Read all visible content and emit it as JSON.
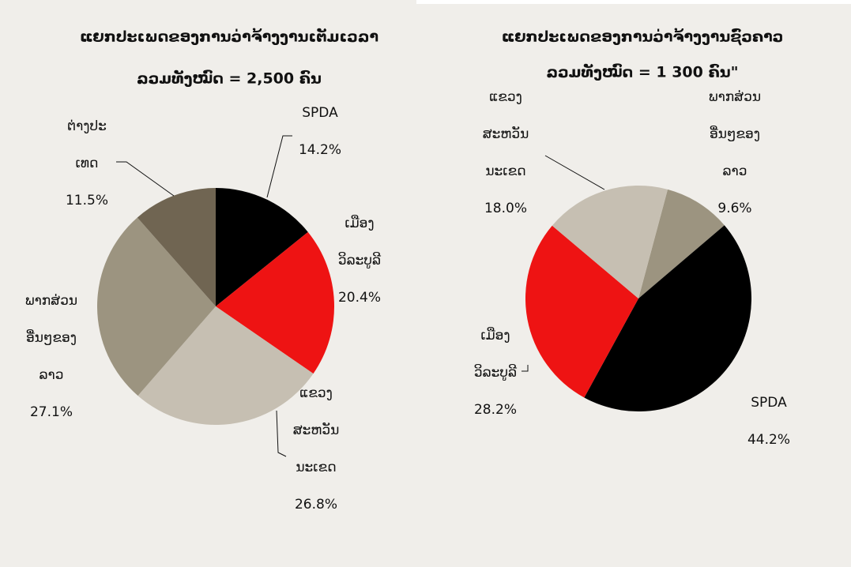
{
  "chart_data": [
    {
      "type": "pie",
      "title": "ແຍກປະເພດຂອງການວ່າຈ້າງງານເຕັມເວລາ",
      "subtitle": "ລວມທັງໝົດ = 2,500 ຄົນ",
      "categories": [
        [
          "SPDA"
        ],
        [
          "ເມືອງ",
          "ວິລະບູລີ"
        ],
        [
          "ແຂວງ",
          "ສະຫວັນ",
          "ນະເຂດ"
        ],
        [
          "ພາກສ່ວນ",
          "ອື່ນໆຂອງ",
          "ລາວ"
        ],
        [
          "ຕ່າງປະ",
          "ເທດ"
        ]
      ],
      "values": [
        14.2,
        20.4,
        26.8,
        27.1,
        11.5
      ],
      "value_labels": [
        "14.2%",
        "20.4%",
        "26.8%",
        "27.1%",
        "11.5%"
      ],
      "colors": [
        "#000000",
        "#ee1313",
        "#c6bfb2",
        "#9c9480",
        "#706552"
      ],
      "start_angle": 0
    },
    {
      "type": "pie",
      "title": "ແຍກປະເພດຂອງການວ່າຈ້າງງານຊົ່ວຄາວ",
      "subtitle": "ລວມທັງໝົດ = 1 300 ຄົນ\"",
      "categories": [
        [
          "ພາກສ່ວນ",
          "ອື່ນໆຂອງ",
          "ລາວ"
        ],
        [
          "SPDA"
        ],
        [
          "ເມືອງ",
          "ວິລະບູລີ"
        ],
        [
          "ແຂວງ",
          "ສະຫວັນ",
          "ນະເຂດ"
        ]
      ],
      "values": [
        9.6,
        44.2,
        28.2,
        18.0
      ],
      "value_labels": [
        "9.6%",
        "44.2%",
        "28.2%",
        "18.0%"
      ],
      "colors": [
        "#9c9480",
        "#000000",
        "#ee1313",
        "#c6bfb2"
      ],
      "start_angle": 15
    }
  ]
}
